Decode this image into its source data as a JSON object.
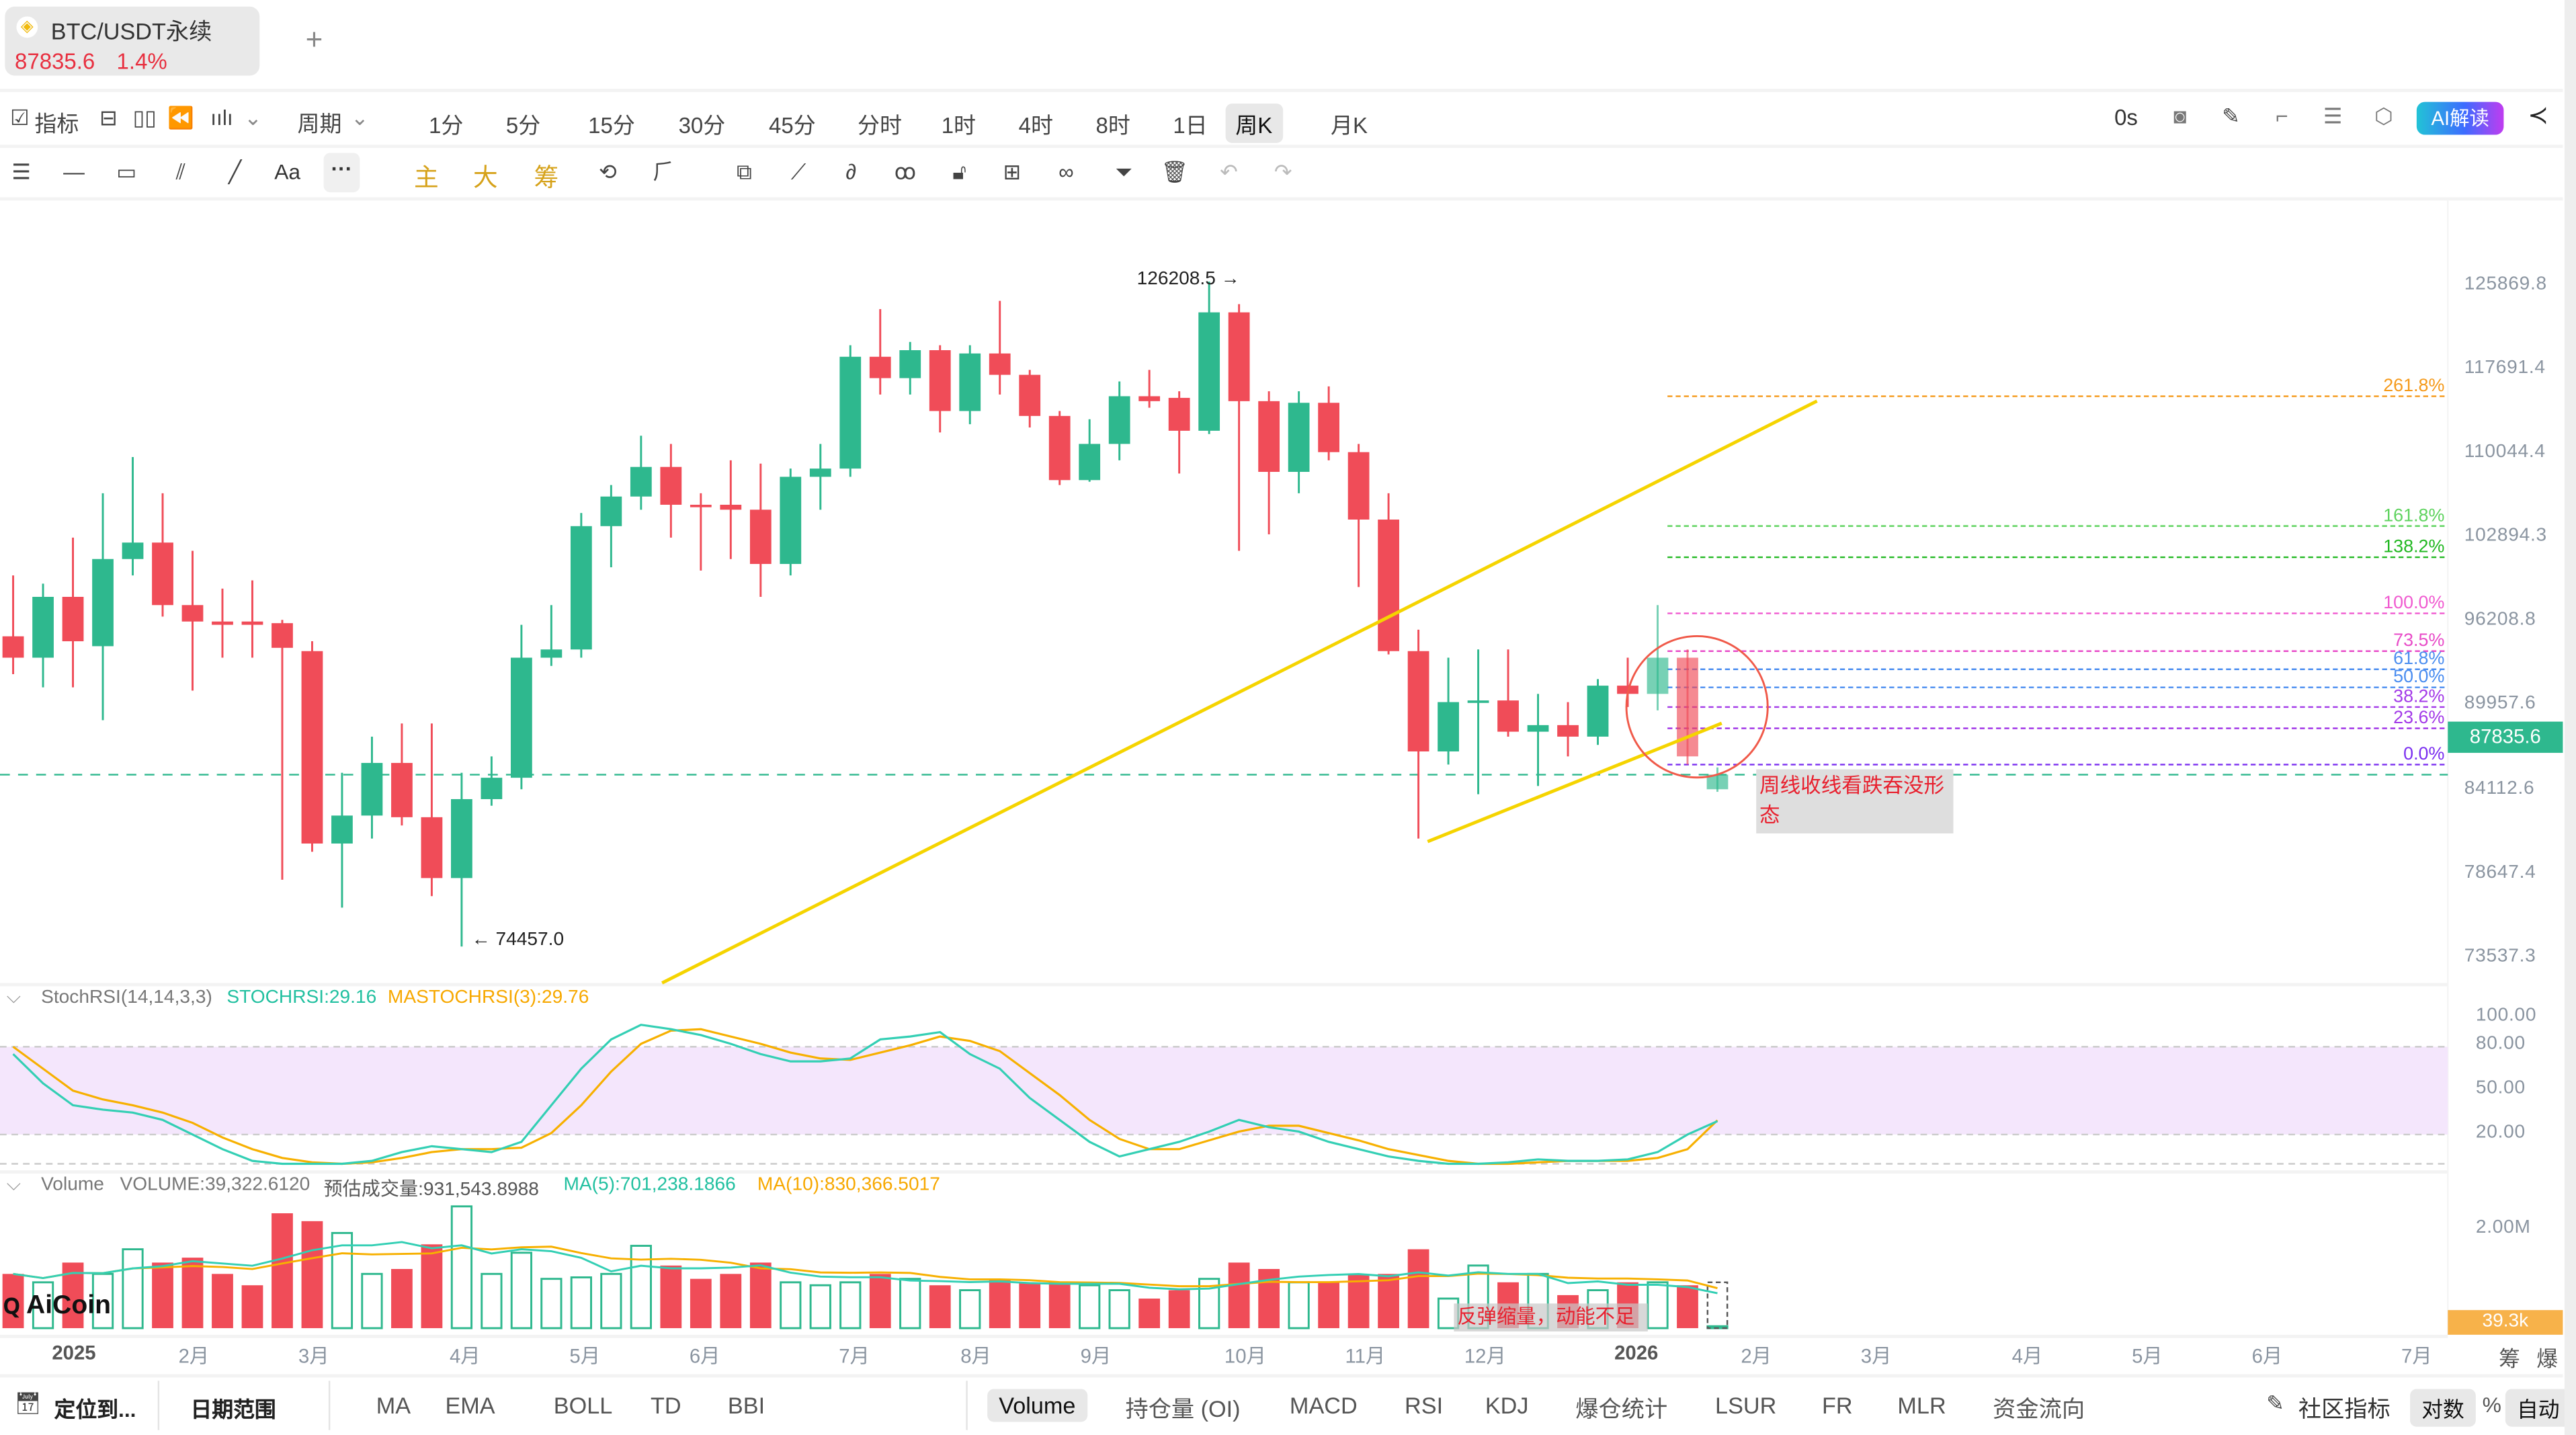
{
  "tab": {
    "symbol": "BTC/USDT永续",
    "price": "87835.6",
    "change": "1.4%",
    "add_label": "+"
  },
  "toolbar": {
    "indicator_label": "指标",
    "period_label": "周期",
    "intervals": [
      "1分",
      "5分",
      "15分",
      "30分",
      "45分",
      "分时",
      "1时",
      "4时",
      "8时",
      "1日",
      "周K",
      "月K"
    ],
    "selected_interval": "周K",
    "countdown": "0s",
    "ai_label": "AI解读",
    "drawing_gold": [
      "主",
      "大",
      "筹"
    ],
    "text_tool": "Aa"
  },
  "colors": {
    "up": "#2eb88e",
    "down": "#f04c58",
    "trend": "#f5d400",
    "ma5": "#33cfb4",
    "ma10": "#f7b000",
    "accent": "#2eb88e"
  },
  "chart_data": {
    "type": "candlestick",
    "price_axis": [
      "125869.8",
      "117691.4",
      "110044.4",
      "102894.3",
      "96208.8",
      "89957.6",
      "84112.6",
      "78647.4",
      "73537.3"
    ],
    "ylim": [
      73537.3,
      125869.8
    ],
    "current_price": "87835.6",
    "high_label": "126208.5",
    "low_label": "74457.0",
    "candles": [
      [
        98604,
        103340,
        95660,
        96940
      ],
      [
        96940,
        102700,
        94636,
        101676
      ],
      [
        101676,
        106284,
        94636,
        98220
      ],
      [
        97836,
        109740,
        92076,
        104620
      ],
      [
        104620,
        112556,
        103340,
        105900
      ],
      [
        105900,
        109740,
        100140,
        101036
      ],
      [
        101036,
        105260,
        94380,
        99756
      ],
      [
        99756,
        102316,
        96940,
        99500
      ],
      [
        99756,
        102956,
        96940,
        99500
      ],
      [
        99628,
        99884,
        79660,
        97708
      ],
      [
        97452,
        98220,
        81836,
        82476
      ],
      [
        82476,
        87980,
        77484,
        84652
      ],
      [
        84652,
        90796,
        82860,
        88748
      ],
      [
        88748,
        91820,
        83884,
        84524
      ],
      [
        84524,
        91820,
        78380,
        79788
      ],
      [
        79788,
        87980,
        74457,
        85932
      ],
      [
        85932,
        89260,
        85420,
        87596
      ],
      [
        87596,
        99500,
        86700,
        96940
      ],
      [
        96940,
        101036,
        96300,
        97580
      ],
      [
        97580,
        108204,
        96940,
        107180
      ],
      [
        107180,
        110380,
        103980,
        109484
      ],
      [
        109484,
        114220,
        108460,
        111788
      ],
      [
        111788,
        113580,
        106284,
        108844
      ],
      [
        108844,
        109740,
        103724,
        108716
      ],
      [
        108844,
        112300,
        104620,
        108460
      ],
      [
        108460,
        112044,
        101676,
        104236
      ],
      [
        104236,
        111660,
        103340,
        111020
      ],
      [
        111020,
        113580,
        108460,
        111660
      ],
      [
        111660,
        121260,
        111020,
        120364
      ],
      [
        120364,
        124076,
        117420,
        118700
      ],
      [
        118700,
        121516,
        117420,
        120876
      ],
      [
        120876,
        121260,
        114476,
        116140
      ],
      [
        116140,
        121260,
        115116,
        120620
      ],
      [
        120620,
        124716,
        117420,
        118956
      ],
      [
        118956,
        119340,
        114860,
        115756
      ],
      [
        115756,
        116140,
        110380,
        110764
      ],
      [
        110764,
        115500,
        110636,
        113580
      ],
      [
        113580,
        118444,
        112300,
        117292
      ],
      [
        117292,
        119340,
        116396,
        116908
      ],
      [
        117164,
        117676,
        111276,
        114604
      ],
      [
        114604,
        126208.5,
        114348,
        123820
      ],
      [
        123820,
        124460,
        105260,
        116908
      ],
      [
        116908,
        117676,
        106540,
        111404
      ],
      [
        111404,
        117676,
        109740,
        116780
      ],
      [
        116780,
        118060,
        112300,
        112940
      ],
      [
        112940,
        113580,
        102444,
        107692
      ],
      [
        107692,
        109740,
        97196,
        97452
      ],
      [
        97452,
        99116,
        82860,
        89644
      ],
      [
        89644,
        96940,
        88620,
        93484
      ],
      [
        93484,
        97580,
        86316,
        93612
      ],
      [
        93612,
        97580,
        90796,
        91180
      ],
      [
        91180,
        94124,
        86956,
        91692
      ],
      [
        91692,
        93484,
        89260,
        90796
      ],
      [
        90796,
        95276,
        90156,
        94764
      ],
      [
        94764,
        96940,
        93100,
        94124
      ],
      [
        94124,
        101036,
        92844,
        96940
      ],
      [
        96940,
        97580,
        88620,
        89260
      ],
      [
        86700,
        88400,
        86500,
        87836
      ]
    ],
    "faded_from": 55,
    "fibonacci": [
      {
        "label": "261.8%",
        "color": "#f59a1b"
      },
      {
        "label": "161.8%",
        "color": "#5fd35f"
      },
      {
        "label": "138.2%",
        "color": "#22b822"
      },
      {
        "label": "100.0%",
        "color": "#f05bd0"
      },
      {
        "label": "73.5%",
        "color": "#e84bc8"
      },
      {
        "label": "61.8%",
        "color": "#4a8df0"
      },
      {
        "label": "50.0%",
        "color": "#4a8df0"
      },
      {
        "label": "38.2%",
        "color": "#a33ae8"
      },
      {
        "label": "23.6%",
        "color": "#a33ae8"
      },
      {
        "label": "0.0%",
        "color": "#7b2ff0"
      }
    ],
    "fib_prices": [
      117290,
      107190,
      104760,
      100390,
      97450,
      96040,
      94630,
      93100,
      91440,
      88620
    ],
    "annotation_main": "周线收线看跌吞没形态",
    "stochrsi": {
      "title": "StochRSI(14,14,3,3)",
      "k_label": "STOCHRSI:29.16",
      "d_label": "MASTOCHRSI(3):29.76",
      "axis": [
        "100.00",
        "80.00",
        "50.00",
        "20.00"
      ],
      "k": [
        75,
        55,
        40,
        37,
        35,
        30,
        20,
        10,
        2,
        0,
        0,
        0,
        2,
        8,
        12,
        10,
        8,
        15,
        40,
        65,
        85,
        95,
        92,
        88,
        82,
        75,
        70,
        70,
        72,
        85,
        87,
        90,
        75,
        65,
        45,
        30,
        15,
        5,
        10,
        15,
        22,
        30,
        25,
        22,
        15,
        10,
        5,
        2,
        0,
        0,
        1,
        3,
        2,
        2,
        3,
        8,
        20,
        29.16
      ],
      "d": [
        80,
        65,
        50,
        44,
        40,
        35,
        28,
        18,
        10,
        4,
        1,
        0,
        1,
        4,
        8,
        10,
        10,
        11,
        21,
        40,
        63,
        82,
        91,
        92,
        87,
        82,
        76,
        72,
        71,
        76,
        81,
        87,
        84,
        77,
        62,
        47,
        30,
        17,
        10,
        10,
        16,
        22,
        26,
        26,
        21,
        16,
        10,
        6,
        2,
        0,
        0,
        1,
        2,
        2,
        2,
        4,
        10,
        29.76
      ]
    },
    "volume": {
      "title": "Volume",
      "volume_label": "VOLUME:39,322.6120",
      "estimate_label": "预估成交量:931,543.8988",
      "ma5_label": "MA(5):701,238.1866",
      "ma10_label": "MA(10):830,366.5017",
      "axis": "2.00M",
      "current_tag": "39.3k",
      "unit": "M",
      "values": [
        1.1,
        0.93,
        1.33,
        1.1,
        1.6,
        1.33,
        1.43,
        1.1,
        0.87,
        2.33,
        2.17,
        1.93,
        1.1,
        1.2,
        1.7,
        2.47,
        1.1,
        1.53,
        1.0,
        1.03,
        1.1,
        1.67,
        1.27,
        1.0,
        1.1,
        1.33,
        0.93,
        0.87,
        0.93,
        1.1,
        1.0,
        0.87,
        0.77,
        1.0,
        0.93,
        0.93,
        0.87,
        0.77,
        0.6,
        0.77,
        1.0,
        1.33,
        1.2,
        0.93,
        0.93,
        1.1,
        1.1,
        1.6,
        0.6,
        1.27,
        0.93,
        1.1,
        0.67,
        0.77,
        0.93,
        0.93,
        0.87,
        0.039
      ],
      "projected": 0.93,
      "annotation": "反弹缩量，动能不足"
    },
    "time_axis": [
      "2025",
      "2月",
      "3月",
      "4月",
      "5月",
      "6月",
      "7月",
      "8月",
      "9月",
      "10月",
      "11月",
      "12月",
      "2026",
      "2月",
      "3月",
      "4月",
      "5月",
      "6月",
      "7月"
    ],
    "axis_right_labels": [
      "筹",
      "爆"
    ]
  },
  "watermark": "AiCoin",
  "bottom": {
    "locate": "定位到...",
    "date_range": "日期范围",
    "main_indicators": [
      "MA",
      "EMA",
      "BOLL",
      "TD",
      "BBI"
    ],
    "sub_indicators": [
      "Volume",
      "持仓量 (OI)",
      "MACD",
      "RSI",
      "KDJ",
      "爆仓统计",
      "LSUR",
      "FR",
      "MLR",
      "资金流向"
    ],
    "selected_sub": "Volume",
    "community": "社区指标",
    "log": "对数",
    "percent": "%",
    "auto": "自动"
  }
}
